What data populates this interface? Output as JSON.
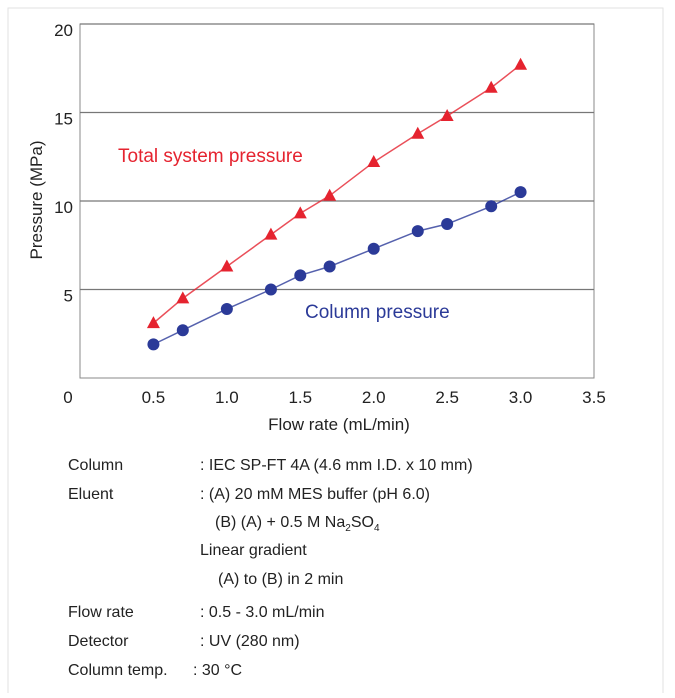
{
  "chart_data": {
    "type": "line",
    "x_label": "Flow rate (mL/min)",
    "y_label": "Pressure (MPa)",
    "xlim": [
      0,
      3.5
    ],
    "xticks": [
      0,
      0.5,
      {
        "value": 1,
        "label": "1.0"
      },
      1.5,
      {
        "value": 2,
        "label": "2.0"
      },
      2.5,
      {
        "value": 3,
        "label": "3.0"
      },
      3.5
    ],
    "ylim": [
      0,
      20
    ],
    "yticks": [
      5,
      10,
      15,
      20
    ],
    "grid": true,
    "series": [
      {
        "name": "Total system pressure",
        "color": "#e5232f",
        "marker": "triangle",
        "x": [
          0.5,
          0.7,
          1.0,
          1.3,
          1.5,
          1.7,
          2.0,
          2.3,
          2.5,
          2.8,
          3.0
        ],
        "values": [
          3.1,
          4.5,
          6.3,
          8.1,
          9.3,
          10.3,
          12.2,
          13.8,
          14.8,
          16.4,
          17.7
        ]
      },
      {
        "name": "Column pressure",
        "color": "#2b3a98",
        "marker": "circle",
        "x": [
          0.5,
          0.7,
          1.0,
          1.3,
          1.5,
          1.7,
          2.0,
          2.3,
          2.5,
          2.8,
          3.0
        ],
        "values": [
          1.9,
          2.7,
          3.9,
          5.0,
          5.8,
          6.3,
          7.3,
          8.3,
          8.7,
          9.7,
          10.5
        ]
      }
    ]
  },
  "notes": {
    "column": {
      "label": "Column",
      "value": ": IEC SP-FT 4A (4.6 mm I.D. x 10 mm)"
    },
    "eluent": {
      "label": "Eluent",
      "value": ": (A) 20 mM MES buffer (pH 6.0)",
      "b_line": {
        "text": "(B)  (A) + 0.5 M Na",
        "sub1": "2",
        "mid": "SO",
        "sub2": "4"
      },
      "gradient": "Linear gradient",
      "gradient_detail": "(A) to (B) in 2 min"
    },
    "flow_rate": {
      "label": "Flow rate",
      "value": ": 0.5 - 3.0 mL/min"
    },
    "detector": {
      "label": "Detector",
      "value": ": UV (280 nm)"
    },
    "temperature": {
      "label": "Column temp.",
      "value": ": 30 °C"
    }
  }
}
